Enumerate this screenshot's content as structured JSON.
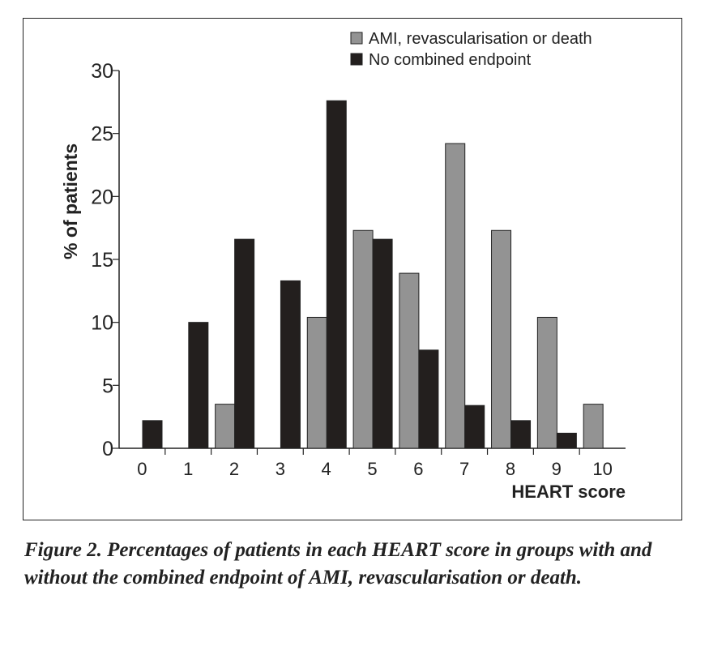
{
  "chart_data": {
    "type": "bar",
    "categories": [
      "0",
      "1",
      "2",
      "3",
      "4",
      "5",
      "6",
      "7",
      "8",
      "9",
      "10"
    ],
    "series": [
      {
        "name": "AMI, revascularisation or death",
        "color": "#939393",
        "values": [
          0,
          0,
          3.5,
          0,
          10.4,
          17.3,
          13.9,
          24.2,
          17.3,
          10.4,
          3.5
        ]
      },
      {
        "name": "No combined endpoint",
        "color": "#231f1e",
        "values": [
          2.2,
          10.0,
          16.6,
          13.3,
          27.6,
          16.6,
          7.8,
          3.4,
          2.2,
          1.2,
          0
        ]
      }
    ],
    "xlabel": "HEART score",
    "ylabel": "% of patients",
    "ylim": [
      0,
      30
    ],
    "yticks": [
      "0",
      "5",
      "10",
      "15",
      "20",
      "25",
      "30"
    ],
    "grid": false,
    "legend": "top-right"
  },
  "caption": "Figure 2. Percentages of patients in each HEART score in groups with and without the combined endpoint of AMI, revascularisation or death."
}
